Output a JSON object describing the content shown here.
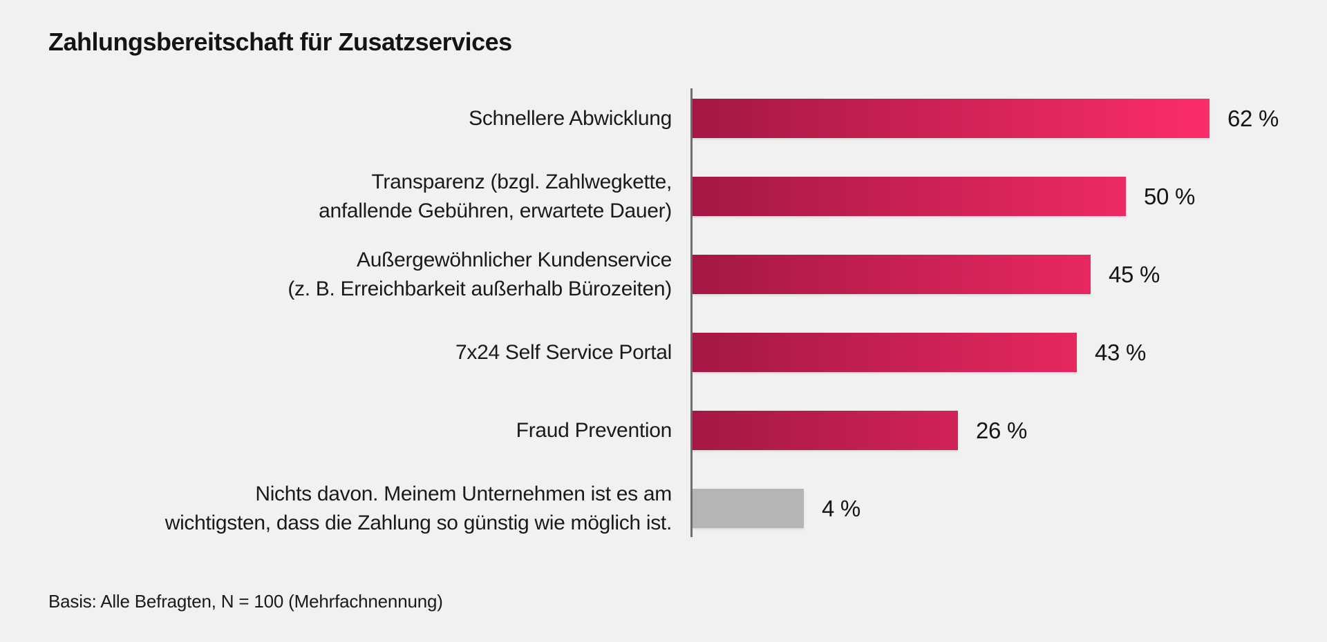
{
  "title": "Zahlungsbereitschaft für Zusatzservices",
  "footer_note": "Basis: Alle Befragten, N = 100 (Mehrfachnennung)",
  "chart_data": {
    "type": "bar",
    "orientation": "horizontal",
    "title": "Zahlungsbereitschaft für Zusatzservices",
    "categories": [
      "Schnellere Abwicklung",
      "Transparenz (bzgl. Zahlwegkette, anfallende Gebühren, erwartete Dauer)",
      "Außergewöhnlicher Kundenservice (z. B. Erreichbarkeit außerhalb Bürozeiten)",
      "7x24 Self Service Portal",
      "Fraud Prevention",
      "Nichts davon. Meinem Unternehmen ist es am wichtigsten, dass die Zahlung so günstig wie möglich ist."
    ],
    "category_lines": [
      [
        "Schnellere Abwicklung"
      ],
      [
        "Transparenz (bzgl. Zahlwegkette,",
        "anfallende Gebühren, erwartete Dauer)"
      ],
      [
        "Außergewöhnlicher Kundenservice",
        "(z. B. Erreichbarkeit außerhalb Bürozeiten)"
      ],
      [
        "7x24 Self Service Portal"
      ],
      [
        "Fraud Prevention"
      ],
      [
        "Nichts davon. Meinem Unternehmen ist es am",
        "wichtigsten, dass die Zahlung so günstig wie möglich ist."
      ]
    ],
    "values": [
      62,
      50,
      45,
      43,
      26,
      4
    ],
    "value_labels": [
      "62 %",
      "50 %",
      "45 %",
      "43 %",
      "26 %",
      "4 %"
    ],
    "unit": "%",
    "note": "Basis: Alle Befragten, N = 100 (Mehrfachnennung)",
    "legend": "none",
    "grid": "off",
    "axis": "single vertical baseline at zero",
    "neutral_category_index": 5
  },
  "colors": {
    "background": "#f1f1f2",
    "text": "#1a1a1a",
    "axis_line": "#6f6f6f",
    "bar_gradient_start": "#a41844",
    "bar_gradient_end": "#fc2d69",
    "bar_neutral": "#b5b5b5"
  }
}
